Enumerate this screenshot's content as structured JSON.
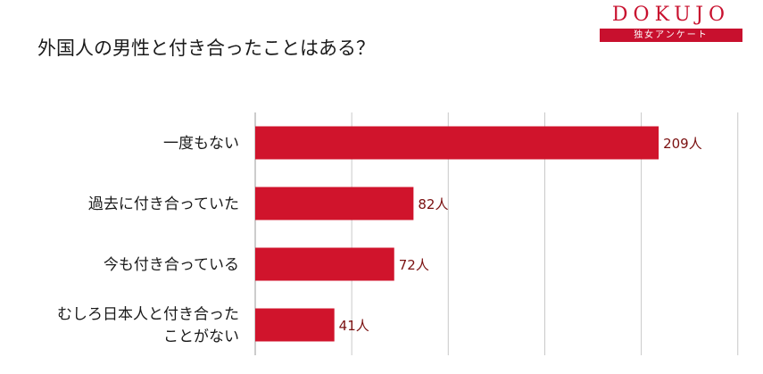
{
  "title": "外国人の男性と付き合ったことはある？",
  "logo": {
    "brand": "DOKUJO",
    "subtitle": "独女アンケート"
  },
  "colors": {
    "bar": "#d0142c",
    "grid": "#c8c8c8",
    "brand": "#c8102e"
  },
  "chart_data": {
    "type": "bar",
    "orientation": "horizontal",
    "categories": [
      "一度もない",
      "過去に付き合っていた",
      "今も付き合っている",
      "むしろ日本人と付き合ったことがない"
    ],
    "category_lines": [
      [
        "一度もない"
      ],
      [
        "過去に付き合っていた"
      ],
      [
        "今も付き合っている"
      ],
      [
        "むしろ日本人と付き合った",
        "ことがない"
      ]
    ],
    "values": [
      209,
      82,
      72,
      41
    ],
    "data_labels": [
      "209人",
      "82人",
      "72人",
      "41人"
    ],
    "xlim": [
      0,
      250
    ],
    "grid": true,
    "legend": "none"
  }
}
